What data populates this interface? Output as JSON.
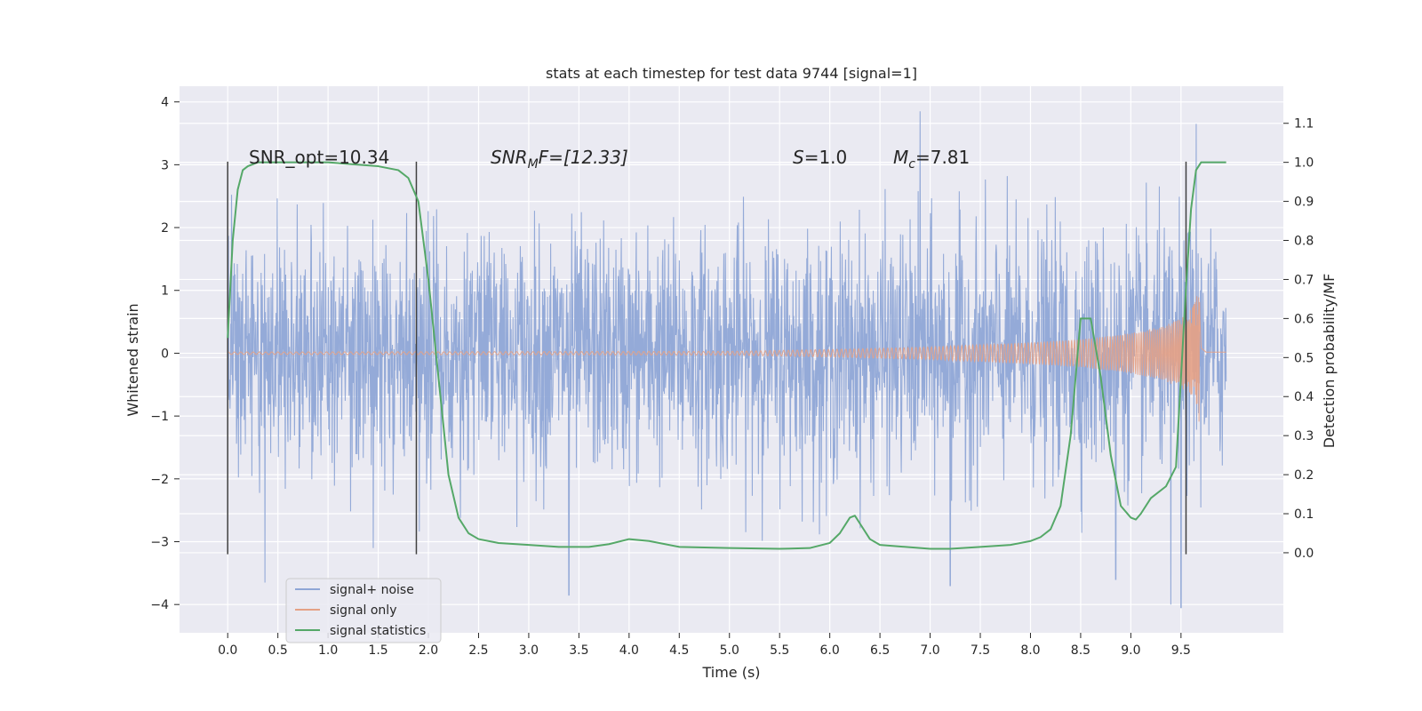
{
  "chart_data": {
    "type": "line",
    "title": "stats at each timestep for test data 9744 [signal=1]",
    "xlabel": "Time (s)",
    "ylabel": "Whitened strain",
    "y2label": "Detection probability/MF",
    "xlim": [
      -0.48,
      10.52
    ],
    "ylim": [
      -4.45,
      4.25
    ],
    "y2lim": [
      -0.205,
      1.195
    ],
    "xticks": [
      "0.0",
      "0.5",
      "1.0",
      "1.5",
      "2.0",
      "2.5",
      "3.0",
      "3.5",
      "4.0",
      "4.5",
      "5.0",
      "5.5",
      "6.0",
      "6.5",
      "7.0",
      "7.5",
      "8.0",
      "8.5",
      "9.0",
      "9.5"
    ],
    "yticks": [
      "4",
      "3",
      "2",
      "1",
      "0",
      "−1",
      "−2",
      "−3",
      "−4"
    ],
    "y2ticks": [
      "0.0",
      "0.1",
      "0.2",
      "0.3",
      "0.4",
      "0.5",
      "0.6",
      "0.7",
      "0.8",
      "0.9",
      "1.0",
      "1.1"
    ],
    "grid": true,
    "legend": {
      "position": "lower-left",
      "entries": [
        "signal+ noise",
        "signal only",
        "signal statistics"
      ]
    },
    "annotations": {
      "snr_opt": "SNR_opt=10.34",
      "snr_mf_base": "SNR",
      "snr_mf_sub": "M",
      "snr_mf_rest": "F=[12.33]",
      "s_base": "S",
      "s_rest": "=1.0",
      "mc_base": "M",
      "mc_sub": "c",
      "mc_rest": "=7.81"
    },
    "vlines_x": [
      0.0,
      1.88,
      9.55
    ],
    "vlines_y": [
      -3.2,
      3.05
    ],
    "colors": {
      "noise": "#8fa6d6",
      "signal": "#e5a185",
      "stat": "#55a868",
      "background": "#eaeaf2",
      "grid": "#ffffff",
      "vline": "#404040"
    },
    "series": [
      {
        "name": "signal+ noise",
        "axis": "left",
        "description_range": [
          0.0,
          9.95
        ],
        "typical_band": [
          -2.3,
          2.3
        ],
        "peaks": [
          {
            "x": 0.37,
            "y": -3.65
          },
          {
            "x": 1.45,
            "y": -3.1
          },
          {
            "x": 3.4,
            "y": -3.85
          },
          {
            "x": 6.9,
            "y": 3.85
          },
          {
            "x": 7.2,
            "y": -3.7
          },
          {
            "x": 8.85,
            "y": -3.6
          },
          {
            "x": 9.4,
            "y": -4.0
          },
          {
            "x": 9.5,
            "y": -4.05
          },
          {
            "x": 9.65,
            "y": 3.65
          }
        ]
      },
      {
        "name": "signal only",
        "axis": "left",
        "x": [
          0.0,
          5.0,
          6.0,
          7.0,
          8.0,
          8.5,
          9.0,
          9.3,
          9.5,
          9.6,
          9.65,
          9.68,
          9.7,
          9.75,
          9.95
        ],
        "envelope": [
          0.02,
          0.03,
          0.06,
          0.1,
          0.17,
          0.22,
          0.32,
          0.42,
          0.55,
          0.7,
          0.85,
          1.1,
          0.1,
          0.02,
          0.02
        ]
      },
      {
        "name": "signal statistics",
        "axis": "right",
        "x": [
          0.0,
          0.05,
          0.1,
          0.15,
          0.2,
          0.3,
          0.5,
          1.0,
          1.5,
          1.7,
          1.8,
          1.9,
          2.0,
          2.1,
          2.2,
          2.3,
          2.4,
          2.5,
          2.7,
          3.0,
          3.3,
          3.6,
          3.8,
          4.0,
          4.2,
          4.5,
          5.0,
          5.5,
          5.8,
          6.0,
          6.1,
          6.2,
          6.25,
          6.3,
          6.4,
          6.5,
          7.0,
          7.2,
          7.5,
          7.8,
          8.0,
          8.1,
          8.2,
          8.3,
          8.4,
          8.5,
          8.6,
          8.7,
          8.8,
          8.9,
          9.0,
          9.05,
          9.1,
          9.2,
          9.35,
          9.45,
          9.55,
          9.6,
          9.65,
          9.7,
          9.8,
          9.9,
          9.95
        ],
        "y": [
          0.55,
          0.8,
          0.93,
          0.98,
          0.99,
          1.0,
          1.0,
          1.0,
          0.99,
          0.98,
          0.96,
          0.9,
          0.7,
          0.45,
          0.2,
          0.09,
          0.05,
          0.035,
          0.025,
          0.02,
          0.015,
          0.015,
          0.022,
          0.035,
          0.03,
          0.015,
          0.012,
          0.01,
          0.012,
          0.025,
          0.05,
          0.09,
          0.095,
          0.075,
          0.035,
          0.02,
          0.01,
          0.01,
          0.015,
          0.02,
          0.03,
          0.04,
          0.06,
          0.12,
          0.3,
          0.6,
          0.6,
          0.45,
          0.25,
          0.12,
          0.09,
          0.085,
          0.1,
          0.14,
          0.17,
          0.22,
          0.68,
          0.88,
          0.98,
          1.0,
          1.0,
          1.0,
          1.0
        ]
      }
    ]
  }
}
